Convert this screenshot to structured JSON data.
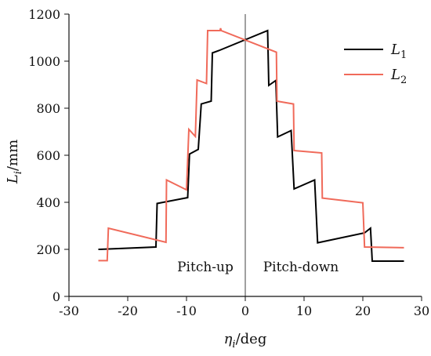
{
  "chart_data": {
    "type": "line",
    "title": "",
    "xlabel": {
      "symbol": "η",
      "subscript": "i",
      "unit": "/deg"
    },
    "ylabel": {
      "symbol": "L",
      "subscript": "i",
      "unit": "/mm"
    },
    "xlim": [
      -30,
      30
    ],
    "ylim": [
      0,
      1200
    ],
    "xticks": [
      -30,
      -20,
      -10,
      0,
      10,
      20,
      30
    ],
    "yticks": [
      0,
      200,
      400,
      600,
      800,
      1000,
      1200
    ],
    "grid": false,
    "legend_position": "top-right",
    "annotations": [
      {
        "text": "Pitch-up",
        "side": "left"
      },
      {
        "text": "Pitch-down",
        "side": "right"
      }
    ],
    "reference_line": {
      "x": 0
    },
    "colors": {
      "L1": "#000000",
      "L2": "#f06a5a",
      "axis": "#111111"
    },
    "series": [
      {
        "name": "L1",
        "symbol": "L",
        "subscript": "1",
        "color": "#000000",
        "points": [
          [
            -25,
            200
          ],
          [
            -15.2,
            210
          ],
          [
            -15,
            395
          ],
          [
            -9.8,
            420
          ],
          [
            -9.5,
            605
          ],
          [
            -8,
            625
          ],
          [
            -7.5,
            818
          ],
          [
            -5.8,
            830
          ],
          [
            -5.6,
            1035
          ],
          [
            -4.5,
            1045
          ],
          [
            3.8,
            1130
          ],
          [
            4,
            897
          ],
          [
            5.2,
            918
          ],
          [
            5.5,
            678
          ],
          [
            7.8,
            705
          ],
          [
            8.3,
            457
          ],
          [
            11.8,
            495
          ],
          [
            12.3,
            228
          ],
          [
            20.3,
            270
          ],
          [
            21.3,
            290
          ],
          [
            21.6,
            150
          ],
          [
            27,
            150
          ]
        ]
      },
      {
        "name": "L2",
        "symbol": "L",
        "subscript": "2",
        "color": "#f06a5a",
        "points": [
          [
            -25,
            152
          ],
          [
            -23.5,
            152
          ],
          [
            -23.3,
            290
          ],
          [
            -13.5,
            230
          ],
          [
            -13.4,
            495
          ],
          [
            -10,
            453
          ],
          [
            -9.6,
            710
          ],
          [
            -8.5,
            680
          ],
          [
            -8.2,
            920
          ],
          [
            -6.6,
            905
          ],
          [
            -6.4,
            1130
          ],
          [
            -4.3,
            1130
          ],
          [
            -4.2,
            1140
          ],
          [
            -4.1,
            1130
          ],
          [
            5.3,
            1038
          ],
          [
            5.4,
            830
          ],
          [
            8.2,
            818
          ],
          [
            8.3,
            620
          ],
          [
            13,
            610
          ],
          [
            13.1,
            418
          ],
          [
            20,
            398
          ],
          [
            20.3,
            210
          ],
          [
            27,
            207
          ]
        ]
      }
    ]
  }
}
